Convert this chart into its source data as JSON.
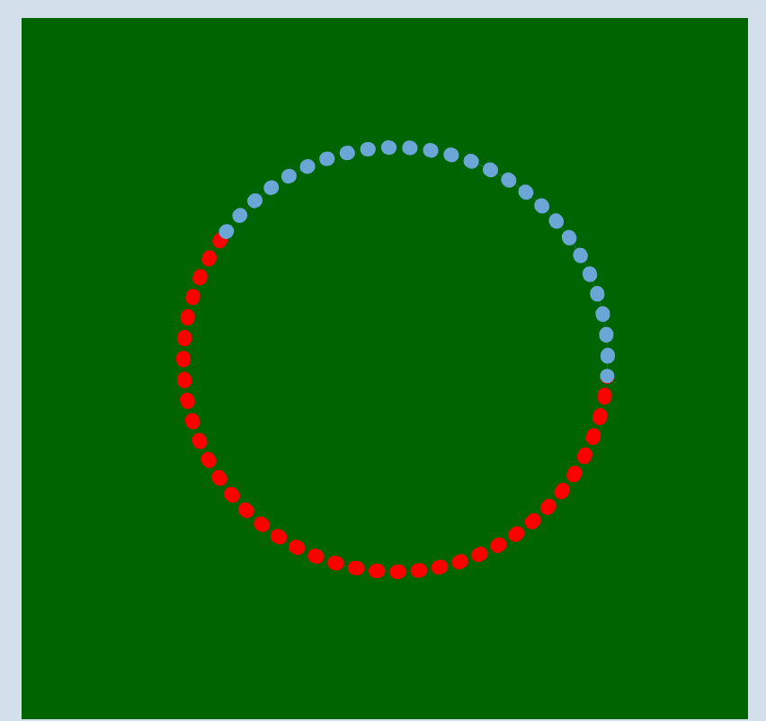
{
  "chart_data": {
    "type": "donut",
    "categories": [
      null,
      null
    ],
    "values": [
      59,
      41
    ],
    "colors": [
      "#ff0000",
      "#6aa6d6"
    ]
  }
}
